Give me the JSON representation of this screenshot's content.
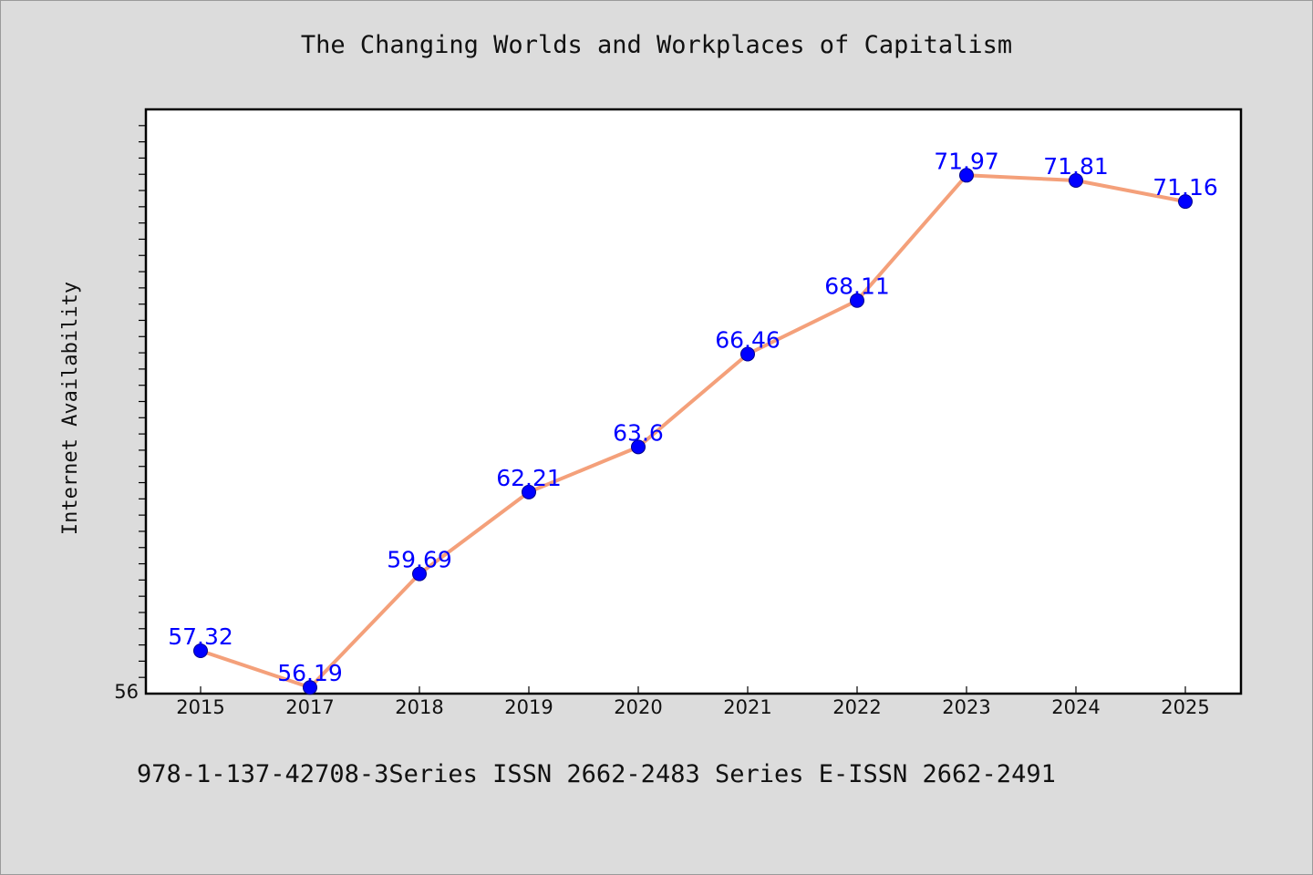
{
  "chart_data": {
    "type": "line",
    "title": "The Changing Worlds and Workplaces of Capitalism",
    "xlabel": "",
    "ylabel": "Internet Availability",
    "categories": [
      "2015",
      "2017",
      "2018",
      "2019",
      "2020",
      "2021",
      "2022",
      "2023",
      "2024",
      "2025"
    ],
    "series": [
      {
        "values": [
          57.32,
          56.19,
          59.69,
          62.21,
          63.6,
          66.46,
          68.11,
          71.97,
          71.81,
          71.16
        ],
        "data_labels": [
          "57.32",
          "56.19",
          "59.69",
          "62.21",
          "63.6",
          "66.46",
          "68.11",
          "71.97",
          "71.81",
          "71.16"
        ]
      }
    ],
    "ylim": [
      56,
      74
    ],
    "yticks": [
      56
    ],
    "grid": false,
    "colors": {
      "line": "#f4a07a",
      "marker": "#0000ff",
      "label": "#0000ff"
    }
  },
  "footer": "978-1-137-42708-3Series ISSN 2662-2483 Series E-ISSN 2662-2491"
}
